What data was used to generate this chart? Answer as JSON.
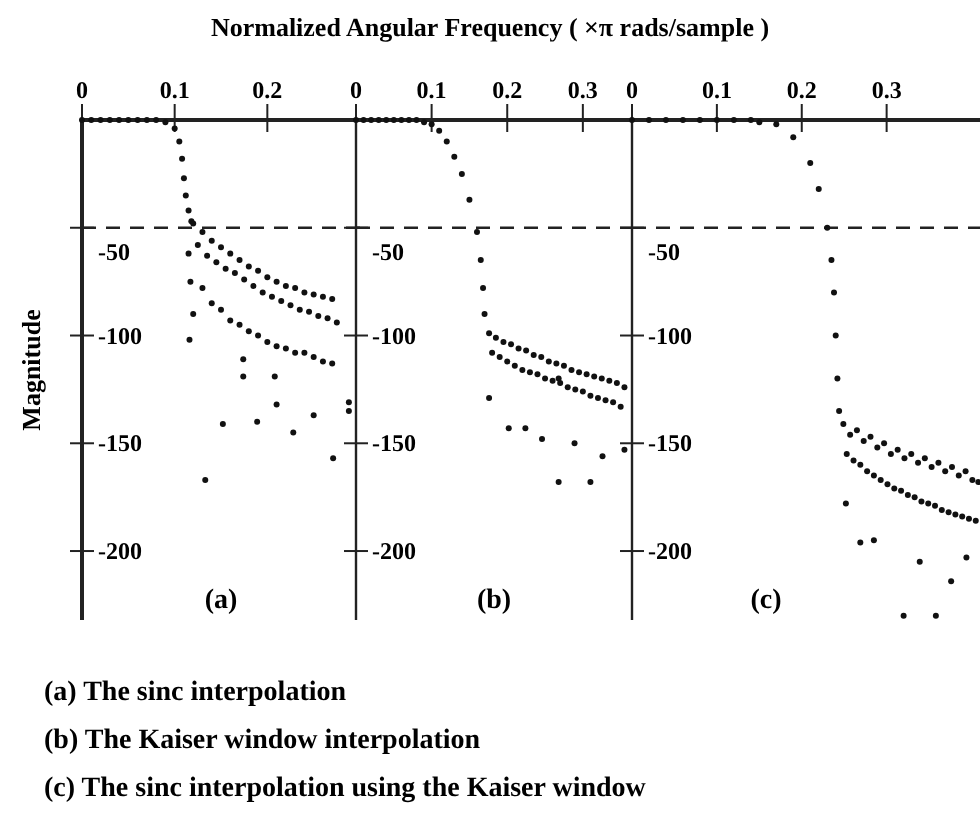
{
  "chart_data": [
    {
      "type": "scatter",
      "xlabel": "Normalized Angular Frequency ( ×π  rads/sample )",
      "ylabel": "Magnitude",
      "xlim": [
        0,
        0.3
      ],
      "xticks": [
        0,
        0.1,
        0.2
      ],
      "ylim": [
        -232,
        0
      ],
      "yticks": [
        -50,
        -100,
        -150,
        -200
      ],
      "marker": "circle",
      "grid": false,
      "ref_lines": [
        {
          "axis": "y",
          "value": -50,
          "line_style": "dashed"
        }
      ],
      "annotations": [
        "(a)",
        "(a) The sinc interpolation",
        "(b) The Kaiser window interpolation",
        "(c) The sinc interpolation using the Kaiser window"
      ],
      "series": [
        {
          "color": "#111111",
          "x": [
            0,
            0.01,
            0.02,
            0.03,
            0.04,
            0.05,
            0.06,
            0.07,
            0.08,
            0.09,
            0.1,
            0.105,
            0.108,
            0.11,
            0.112,
            0.115,
            0.118,
            0.12,
            0.125,
            0.13,
            0.135,
            0.14,
            0.145,
            0.15,
            0.155,
            0.16,
            0.165,
            0.17,
            0.175,
            0.18,
            0.185,
            0.19,
            0.195,
            0.2,
            0.205,
            0.21,
            0.215,
            0.22,
            0.225,
            0.23,
            0.235,
            0.24,
            0.245,
            0.25,
            0.255,
            0.26,
            0.265,
            0.27,
            0.275,
            0.115,
            0.117,
            0.12,
            0.13,
            0.14,
            0.15,
            0.16,
            0.17,
            0.18,
            0.19,
            0.2,
            0.21,
            0.22,
            0.23,
            0.24,
            0.25,
            0.26,
            0.27,
            0.116,
            0.133,
            0.152,
            0.174,
            0.174,
            0.189,
            0.208,
            0.21,
            0.228,
            0.25,
            0.271,
            0.288,
            0.288
          ],
          "values": [
            0,
            0,
            0,
            0,
            0,
            0,
            0,
            0,
            0,
            -1,
            -4,
            -10,
            -18,
            -27,
            -35,
            -42,
            -47,
            -48,
            -58,
            -52,
            -63,
            -56,
            -66,
            -59,
            -69,
            -62,
            -71,
            -65,
            -74,
            -68,
            -77,
            -70,
            -80,
            -73,
            -82,
            -75,
            -84,
            -77,
            -86,
            -78,
            -88,
            -80,
            -89,
            -81,
            -91,
            -82,
            -92,
            -83,
            -94,
            -62,
            -75,
            -90,
            -78,
            -85,
            -88,
            -93,
            -95,
            -98,
            -100,
            -103,
            -105,
            -106,
            -108,
            -108,
            -110,
            -112,
            -113,
            -102,
            -167,
            -141,
            -111,
            -119,
            -140,
            -119,
            -132,
            -145,
            -137,
            -157,
            -135,
            -131
          ]
        }
      ]
    },
    {
      "type": "scatter",
      "xlim": [
        0,
        0.365
      ],
      "xticks": [
        0,
        0.1,
        0.2,
        0.3
      ],
      "ylim": [
        -232,
        0
      ],
      "yticks": [
        -50,
        -100,
        -150,
        -200
      ],
      "marker": "circle",
      "grid": false,
      "ref_lines": [
        {
          "axis": "y",
          "value": -50,
          "line_style": "dashed"
        }
      ],
      "annotations": [
        "(b)"
      ],
      "series": [
        {
          "color": "#111111",
          "x": [
            0,
            0.01,
            0.02,
            0.03,
            0.04,
            0.05,
            0.06,
            0.07,
            0.08,
            0.09,
            0.1,
            0.11,
            0.12,
            0.13,
            0.14,
            0.15,
            0.16,
            0.165,
            0.168,
            0.17,
            0.176,
            0.185,
            0.195,
            0.205,
            0.215,
            0.225,
            0.235,
            0.245,
            0.255,
            0.265,
            0.275,
            0.285,
            0.295,
            0.305,
            0.315,
            0.325,
            0.335,
            0.345,
            0.355,
            0.18,
            0.19,
            0.2,
            0.21,
            0.22,
            0.23,
            0.24,
            0.25,
            0.26,
            0.27,
            0.28,
            0.29,
            0.3,
            0.31,
            0.32,
            0.33,
            0.34,
            0.35,
            0.176,
            0.202,
            0.224,
            0.246,
            0.268,
            0.268,
            0.289,
            0.31,
            0.326,
            0.355
          ],
          "values": [
            0,
            0,
            0,
            0,
            0,
            0,
            0,
            0,
            0,
            -1,
            -2,
            -5,
            -10,
            -17,
            -25,
            -37,
            -52,
            -65,
            -78,
            -90,
            -99,
            -101,
            -103,
            -104,
            -106,
            -107,
            -109,
            -110,
            -112,
            -113,
            -114,
            -116,
            -117,
            -118,
            -119,
            -120,
            -121,
            -122,
            -124,
            -108,
            -110,
            -112,
            -114,
            -116,
            -117,
            -118,
            -120,
            -121,
            -122,
            -124,
            -125,
            -126,
            -128,
            -129,
            -130,
            -131,
            -133,
            -129,
            -143,
            -143,
            -148,
            -168,
            -120,
            -150,
            -168,
            -156,
            -153
          ]
        }
      ]
    },
    {
      "type": "scatter",
      "xlim": [
        0,
        0.41
      ],
      "xticks": [
        0,
        0.1,
        0.2,
        0.3
      ],
      "ylim": [
        -232,
        0
      ],
      "yticks": [
        -50,
        -100,
        -150,
        -200
      ],
      "marker": "circle",
      "grid": false,
      "ref_lines": [
        {
          "axis": "y",
          "value": -50,
          "line_style": "dashed"
        }
      ],
      "annotations": [
        "(c)"
      ],
      "series": [
        {
          "color": "#111111",
          "x": [
            0,
            0.02,
            0.04,
            0.06,
            0.08,
            0.1,
            0.12,
            0.14,
            0.15,
            0.17,
            0.19,
            0.21,
            0.22,
            0.23,
            0.235,
            0.238,
            0.24,
            0.242,
            0.244,
            0.249,
            0.257,
            0.265,
            0.273,
            0.281,
            0.289,
            0.297,
            0.305,
            0.313,
            0.321,
            0.329,
            0.337,
            0.345,
            0.353,
            0.361,
            0.369,
            0.377,
            0.385,
            0.393,
            0.401,
            0.408,
            0.253,
            0.261,
            0.269,
            0.277,
            0.285,
            0.293,
            0.301,
            0.309,
            0.317,
            0.325,
            0.333,
            0.341,
            0.349,
            0.357,
            0.365,
            0.373,
            0.381,
            0.389,
            0.397,
            0.405,
            0.252,
            0.269,
            0.285,
            0.32,
            0.358,
            0.339,
            0.376,
            0.394
          ],
          "values": [
            0,
            0,
            0,
            0,
            0,
            0,
            0,
            0,
            -1,
            -2,
            -8,
            -20,
            -32,
            -50,
            -65,
            -80,
            -100,
            -120,
            -135,
            -141,
            -146,
            -144,
            -149,
            -147,
            -152,
            -150,
            -155,
            -153,
            -157,
            -155,
            -159,
            -157,
            -161,
            -159,
            -163,
            -161,
            -165,
            -163,
            -167,
            -168,
            -155,
            -158,
            -160,
            -163,
            -165,
            -167,
            -169,
            -171,
            -172,
            -174,
            -175,
            -177,
            -178,
            -179,
            -181,
            -182,
            -183,
            -184,
            -185,
            -186,
            -178,
            -196,
            -195,
            -230,
            -230,
            -205,
            -214,
            -203
          ]
        }
      ]
    }
  ]
}
